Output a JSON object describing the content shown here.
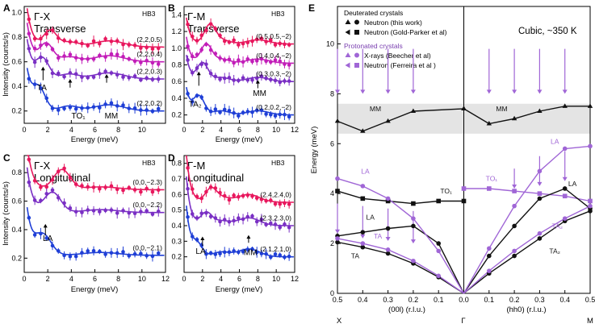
{
  "colors": {
    "red": "#e8175d",
    "magenta": "#c21db8",
    "purple": "#7a2fc4",
    "blue": "#1f3fd6",
    "black": "#111111",
    "lilac": "#a066d6",
    "band": "#e4e4e4"
  },
  "chart_data": [
    {
      "type": "scatter",
      "letter": "A",
      "title": "Γ-X",
      "subtitle": "Transverse",
      "instrument": "HB3",
      "xlabel": "Energy (meV)",
      "ylabel": "Intensity (counts/s)",
      "xlim": [
        0,
        12
      ],
      "ylim": [
        0.1,
        1.05
      ],
      "xticks": [
        "0",
        "2",
        "4",
        "6",
        "8",
        "10"
      ],
      "yticks": [
        "0.2",
        "0.4",
        "0.6",
        "0.8",
        "1.0"
      ],
      "series": [
        {
          "name": "(2,2,0.5)",
          "color": "red",
          "offset": 0.72,
          "q": "0.5"
        },
        {
          "name": "(2,2,0.4)",
          "color": "magenta",
          "offset": 0.6,
          "q": "0.4"
        },
        {
          "name": "(2,2,0.3)",
          "color": "purple",
          "offset": 0.46,
          "q": "0.3"
        },
        {
          "name": "(2,2,0.2)",
          "color": "blue",
          "offset": 0.2,
          "q": "0.2"
        }
      ],
      "annotations": [
        {
          "text": "TA",
          "x": 1.5,
          "y": 0.37
        },
        {
          "text": "TO₁",
          "x": 4.6,
          "y": 0.14
        },
        {
          "text": "MM",
          "x": 7.4,
          "y": 0.14
        }
      ],
      "arrows": [
        {
          "x": 1.6,
          "y0": 0.45,
          "y1": 0.56
        },
        {
          "x": 3.9,
          "y0": 0.39,
          "y1": 0.46
        },
        {
          "x": 7.0,
          "y0": 0.43,
          "y1": 0.5
        }
      ]
    },
    {
      "type": "scatter",
      "letter": "B",
      "title": "Γ-M",
      "subtitle": "Transverse",
      "instrument": "HB3",
      "xlabel": "Energy (meV)",
      "ylabel": "",
      "xlim": [
        0,
        12
      ],
      "ylim": [
        0.1,
        1.5
      ],
      "xticks": [
        "0",
        "2",
        "4",
        "6",
        "8",
        "10",
        "12"
      ],
      "yticks": [
        "0.2",
        "0.4",
        "0.6",
        "0.8",
        "1.0",
        "1.2",
        "1.4"
      ],
      "series": [
        {
          "name": "(0.5,0.5,−2)",
          "color": "red",
          "offset": 1.05,
          "q": "0.5"
        },
        {
          "name": "(0.4,0.4,−2)",
          "color": "magenta",
          "offset": 0.82,
          "q": "0.4"
        },
        {
          "name": "(0.3,0.3,−2)",
          "color": "purple",
          "offset": 0.6,
          "q": "0.3"
        },
        {
          "name": "(0.2,0.2,−2)",
          "color": "blue",
          "offset": 0.2,
          "q": "0.2"
        }
      ],
      "annotations": [
        {
          "text": "TA₂",
          "x": 1.2,
          "y": 0.3
        },
        {
          "text": "MM",
          "x": 8.2,
          "y": 0.43
        }
      ],
      "arrows": [
        {
          "x": 1.6,
          "y0": 0.55,
          "y1": 0.72
        },
        {
          "x": 8.0,
          "y0": 0.52,
          "y1": 0.62
        }
      ]
    },
    {
      "type": "scatter",
      "letter": "C",
      "title": "Γ-X",
      "subtitle": "Longitudinal",
      "instrument": "HB3",
      "xlabel": "Energy (meV)",
      "ylabel": "Intensity (counts/s)",
      "xlim": [
        0,
        12
      ],
      "ylim": [
        0.1,
        0.92
      ],
      "xticks": [
        "0",
        "2",
        "4",
        "6",
        "8",
        "10",
        "12"
      ],
      "yticks": [
        "0.2",
        "0.4",
        "0.6",
        "0.8"
      ],
      "series": [
        {
          "name": "(0,0,−2.3)",
          "color": "red",
          "offset": 0.68,
          "q": "0.3"
        },
        {
          "name": "(0,0,−2.2)",
          "color": "purple",
          "offset": 0.52,
          "q": "0.2"
        },
        {
          "name": "(0,0,−2.1)",
          "color": "blue",
          "offset": 0.22,
          "q": "0.1"
        }
      ],
      "annotations": [
        {
          "text": "LA",
          "x": 2.0,
          "y": 0.32
        }
      ],
      "arrows": [
        {
          "x": 1.8,
          "y0": 0.36,
          "y1": 0.44
        }
      ]
    },
    {
      "type": "scatter",
      "letter": "D",
      "title": "Γ-M",
      "subtitle": "Longitudinal",
      "instrument": "HB3",
      "xlabel": "Energy (meV)",
      "ylabel": "",
      "xlim": [
        0,
        12
      ],
      "ylim": [
        0.1,
        0.85
      ],
      "xticks": [
        "0",
        "2",
        "4",
        "6",
        "8",
        "10",
        "12"
      ],
      "yticks": [
        "0.2",
        "0.3",
        "0.4",
        "0.5",
        "0.6",
        "0.7",
        "0.8"
      ],
      "series": [
        {
          "name": "(2.4,2.4,0)",
          "color": "red",
          "offset": 0.55,
          "q": "0.4"
        },
        {
          "name": "(2.3,2.3,0)",
          "color": "purple",
          "offset": 0.4,
          "q": "0.3"
        },
        {
          "name": "(2.1,2.1,0)",
          "color": "blue",
          "offset": 0.2,
          "q": "0.1"
        }
      ],
      "annotations": [
        {
          "text": "LA",
          "x": 1.8,
          "y": 0.22
        },
        {
          "text": "MM",
          "x": 7.2,
          "y": 0.21
        }
      ],
      "arrows": [
        {
          "x": 2.0,
          "y0": 0.27,
          "y1": 0.33
        },
        {
          "x": 7.0,
          "y0": 0.29,
          "y1": 0.34
        }
      ]
    },
    {
      "type": "scatter",
      "letter": "E",
      "ylabel": "Energy (meV)",
      "ylim": [
        0,
        11.5
      ],
      "yticks": [
        "0",
        "2",
        "4",
        "6",
        "8",
        "10"
      ],
      "left_xlabel": "(00l) (r.l.u.)",
      "right_xlabel": "(hh0) (r.l.u.)",
      "left_xticks": [
        "0.5",
        "0.4",
        "0.3",
        "0.2",
        "0.1",
        "0.0"
      ],
      "right_xticks": [
        "0.1",
        "0.2",
        "0.3",
        "0.4",
        "0.5"
      ],
      "points": [
        "X",
        "Γ",
        "M"
      ],
      "note": "Cubic, ~350 K",
      "legend": {
        "group1": "Deuterated crystals",
        "d1": "Neutron (this work)",
        "d2": "Neutron (Gold-Parker et al)",
        "group2": "Protonated crystals",
        "p1": "X-rays (Beecher et al)",
        "p2": "Neutron (Ferreira et al )"
      },
      "band": [
        6.4,
        7.6
      ],
      "branches": [
        {
          "name": "MM",
          "color": "black",
          "left": [
            [
              0.5,
              6.9
            ],
            [
              0.4,
              6.5
            ],
            [
              0.3,
              6.9
            ],
            [
              0.2,
              7.3
            ],
            [
              0.0,
              7.4
            ]
          ],
          "right": [
            [
              0.0,
              7.4
            ],
            [
              0.1,
              6.8
            ],
            [
              0.2,
              7.0
            ],
            [
              0.3,
              7.3
            ],
            [
              0.4,
              7.5
            ],
            [
              0.5,
              7.5
            ]
          ]
        },
        {
          "name": "TO₁",
          "color": "black",
          "left": [
            [
              0.5,
              4.1
            ],
            [
              0.4,
              3.8
            ],
            [
              0.3,
              3.7
            ],
            [
              0.2,
              3.6
            ],
            [
              0.1,
              3.7
            ],
            [
              0.0,
              3.7
            ]
          ],
          "right": []
        },
        {
          "name": "TO₁",
          "color": "lilac",
          "left": [],
          "right": [
            [
              0.0,
              4.2
            ],
            [
              0.1,
              4.2
            ],
            [
              0.2,
              4.1
            ],
            [
              0.3,
              4.0
            ],
            [
              0.4,
              3.9
            ],
            [
              0.5,
              3.7
            ]
          ]
        },
        {
          "name": "LA",
          "color": "black",
          "left": [
            [
              0.5,
              2.3
            ],
            [
              0.4,
              2.45
            ],
            [
              0.3,
              2.6
            ],
            [
              0.2,
              2.7
            ],
            [
              0.1,
              2.0
            ],
            [
              0.0,
              0.0
            ]
          ],
          "right": [
            [
              0.0,
              0.0
            ],
            [
              0.1,
              1.5
            ],
            [
              0.2,
              2.7
            ],
            [
              0.3,
              3.8
            ],
            [
              0.4,
              4.2
            ],
            [
              0.5,
              3.4
            ]
          ]
        },
        {
          "name": "LA",
          "color": "lilac",
          "left": [
            [
              0.5,
              4.6
            ],
            [
              0.4,
              4.3
            ],
            [
              0.3,
              3.8
            ],
            [
              0.2,
              3.0
            ],
            [
              0.1,
              1.7
            ],
            [
              0.0,
              0.0
            ]
          ],
          "right": [
            [
              0.0,
              0.0
            ],
            [
              0.1,
              1.8
            ],
            [
              0.2,
              3.5
            ],
            [
              0.3,
              4.9
            ],
            [
              0.4,
              5.8
            ],
            [
              0.5,
              5.9
            ]
          ]
        },
        {
          "name": "TA",
          "color": "black",
          "left": [
            [
              0.5,
              2.05
            ],
            [
              0.4,
              1.85
            ],
            [
              0.3,
              1.6
            ],
            [
              0.2,
              1.2
            ],
            [
              0.1,
              0.65
            ],
            [
              0.0,
              0.0
            ]
          ],
          "right": []
        },
        {
          "name": "TA",
          "color": "lilac",
          "left": [
            [
              0.5,
              2.2
            ],
            [
              0.4,
              2.0
            ],
            [
              0.3,
              1.75
            ],
            [
              0.2,
              1.3
            ],
            [
              0.1,
              0.7
            ],
            [
              0.0,
              0.0
            ]
          ],
          "right": []
        },
        {
          "name": "TA₂",
          "color": "black",
          "left": [],
          "right": [
            [
              0.0,
              0.0
            ],
            [
              0.1,
              0.8
            ],
            [
              0.2,
              1.5
            ],
            [
              0.3,
              2.2
            ],
            [
              0.4,
              2.9
            ],
            [
              0.5,
              3.3
            ]
          ]
        },
        {
          "name": "TA₂",
          "color": "lilac",
          "left": [],
          "right": [
            [
              0.0,
              0.0
            ],
            [
              0.1,
              0.9
            ],
            [
              0.2,
              1.7
            ],
            [
              0.3,
              2.4
            ],
            [
              0.4,
              3.0
            ],
            [
              0.5,
              3.5
            ]
          ]
        }
      ],
      "arrow_qs_left": [
        0.5,
        0.4,
        0.3,
        0.2
      ],
      "arrow_qs_right": [
        0.1,
        0.2,
        0.3,
        0.4
      ],
      "branch_labels": [
        {
          "text": "MM",
          "side": "left",
          "q": 0.35,
          "e": 7.3,
          "color": "black"
        },
        {
          "text": "MM",
          "side": "right",
          "q": 0.15,
          "e": 7.3,
          "color": "black"
        },
        {
          "text": "TO₁",
          "side": "left",
          "q": 0.07,
          "e": 4.0,
          "color": "black"
        },
        {
          "text": "TO₁",
          "side": "right",
          "q": 0.11,
          "e": 4.5,
          "color": "lilac"
        },
        {
          "text": "LA",
          "side": "left",
          "q": 0.39,
          "e": 4.8,
          "color": "lilac"
        },
        {
          "text": "LA",
          "side": "left",
          "q": 0.37,
          "e": 2.95,
          "color": "black"
        },
        {
          "text": "TA",
          "side": "left",
          "q": 0.34,
          "e": 2.2,
          "color": "lilac"
        },
        {
          "text": "TA",
          "side": "left",
          "q": 0.43,
          "e": 1.4,
          "color": "black"
        },
        {
          "text": "LA",
          "side": "right",
          "q": 0.36,
          "e": 6.0,
          "color": "lilac"
        },
        {
          "text": "LA",
          "side": "right",
          "q": 0.43,
          "e": 4.3,
          "color": "black"
        },
        {
          "text": "TA₂",
          "side": "right",
          "q": 0.37,
          "e": 2.6,
          "color": "lilac"
        },
        {
          "text": "TA₂",
          "side": "right",
          "q": 0.36,
          "e": 1.6,
          "color": "black"
        }
      ]
    }
  ]
}
